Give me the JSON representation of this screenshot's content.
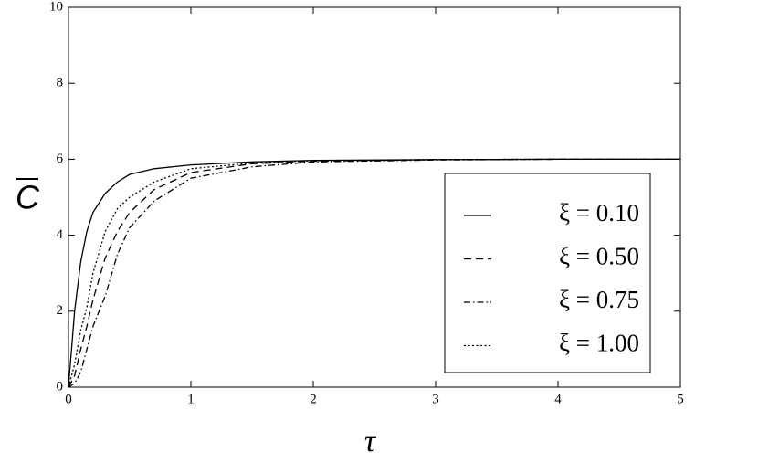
{
  "chart_data": {
    "type": "line",
    "x_label": "τ",
    "y_label": "C",
    "x": [
      0,
      0.05,
      0.1,
      0.15,
      0.2,
      0.3,
      0.4,
      0.5,
      0.7,
      1,
      1.5,
      2,
      3,
      4,
      5
    ],
    "series": [
      {
        "name": "ξ = 0.10",
        "color": "#000000",
        "dash": "solid",
        "values": [
          0,
          2.0,
          3.3,
          4.1,
          4.6,
          5.1,
          5.4,
          5.6,
          5.75,
          5.85,
          5.93,
          5.97,
          5.99,
          6,
          6
        ]
      },
      {
        "name": "ξ = 0.50",
        "color": "#000000",
        "dash": "dashed",
        "values": [
          0,
          0.3,
          1.0,
          1.6,
          2.3,
          3.4,
          4.1,
          4.6,
          5.2,
          5.65,
          5.88,
          5.95,
          5.99,
          6,
          6
        ]
      },
      {
        "name": "ξ = 0.75",
        "color": "#000000",
        "dash": "dashdot",
        "values": [
          0,
          0.1,
          0.4,
          1.0,
          1.6,
          2.4,
          3.5,
          4.2,
          4.9,
          5.5,
          5.8,
          5.93,
          5.98,
          6,
          6
        ]
      },
      {
        "name": "ξ = 1.00",
        "color": "#000000",
        "dash": "dotted",
        "values": [
          0,
          0.6,
          1.5,
          2.1,
          3.0,
          4.1,
          4.7,
          5.0,
          5.4,
          5.75,
          5.9,
          5.96,
          5.99,
          6,
          6
        ]
      }
    ],
    "xlim": [
      0,
      5
    ],
    "ylim": [
      0,
      10
    ],
    "xticks": [
      0,
      1,
      2,
      3,
      4,
      5
    ],
    "yticks": [
      0,
      2,
      4,
      6,
      8,
      10
    ],
    "legend": "lower right"
  }
}
